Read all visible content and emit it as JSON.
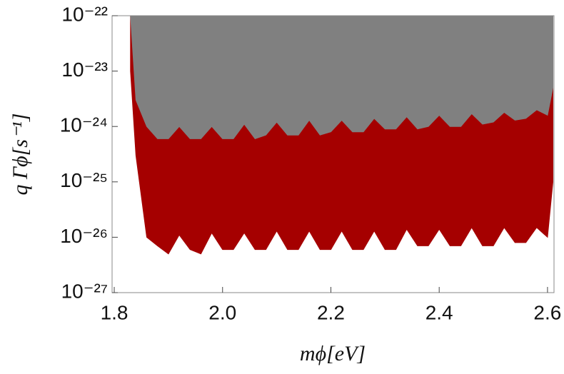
{
  "chart_data": {
    "type": "area",
    "x_label": "mϕ[eV]",
    "y_label": "q Γϕ[s⁻¹]",
    "log_y": true,
    "x": [
      1.83,
      1.84,
      1.86,
      1.88,
      1.9,
      1.92,
      1.94,
      1.96,
      1.98,
      2.0,
      2.02,
      2.04,
      2.06,
      2.08,
      2.1,
      2.12,
      2.14,
      2.16,
      2.18,
      2.2,
      2.22,
      2.24,
      2.26,
      2.28,
      2.3,
      2.32,
      2.34,
      2.36,
      2.38,
      2.4,
      2.42,
      2.44,
      2.46,
      2.48,
      2.5,
      2.52,
      2.54,
      2.56,
      2.58,
      2.6,
      2.61
    ],
    "series": [
      {
        "color": "#a50000",
        "values": [
          1e-23,
          3e-25,
          1e-26,
          7e-27,
          5e-27,
          1.1e-26,
          6e-27,
          5e-27,
          1.2e-26,
          6e-27,
          6e-27,
          1.2e-26,
          6e-27,
          6e-27,
          1.3e-26,
          6e-27,
          6e-27,
          1.3e-26,
          6e-27,
          6e-27,
          1.3e-26,
          6e-27,
          6e-27,
          1.3e-26,
          6e-27,
          6e-27,
          1.4e-26,
          7e-27,
          7e-27,
          1.4e-26,
          7e-27,
          7e-27,
          1.5e-26,
          7e-27,
          7e-27,
          1.5e-26,
          8e-27,
          8e-27,
          1.5e-26,
          1e-26,
          1e-25
        ]
      },
      {
        "color": "#808080",
        "values": [
          1e-22,
          3e-24,
          1e-24,
          6e-25,
          6e-25,
          1e-24,
          6e-25,
          6e-25,
          1e-24,
          6e-25,
          6e-25,
          1.1e-24,
          6e-25,
          7e-25,
          1.2e-24,
          7e-25,
          7e-25,
          1.3e-24,
          7e-25,
          8e-25,
          1.3e-24,
          8e-25,
          8e-25,
          1.4e-24,
          9e-25,
          9e-25,
          1.5e-24,
          9e-25,
          1e-24,
          1.6e-24,
          1e-24,
          1e-24,
          1.7e-24,
          1.1e-24,
          1.2e-24,
          1.8e-24,
          1.3e-24,
          1.4e-24,
          2e-24,
          1.6e-24,
          5e-24
        ]
      }
    ],
    "xlim": [
      1.796,
      2.612
    ],
    "ylim": [
      1e-27,
      1e-22
    ],
    "xticks": [
      1.8,
      {
        "value": 2,
        "label": "2.0"
      },
      2.2,
      2.4,
      2.6
    ],
    "yticks": [
      {
        "value": 1e-27,
        "label": "10⁻²⁷"
      },
      {
        "value": 1e-26,
        "label": "10⁻²⁶"
      },
      {
        "value": 1e-25,
        "label": "10⁻²⁵"
      },
      {
        "value": 1e-24,
        "label": "10⁻²⁴"
      },
      {
        "value": 1e-23,
        "label": "10⁻²³"
      },
      {
        "value": 1e-22,
        "label": "10⁻²²"
      }
    ]
  }
}
